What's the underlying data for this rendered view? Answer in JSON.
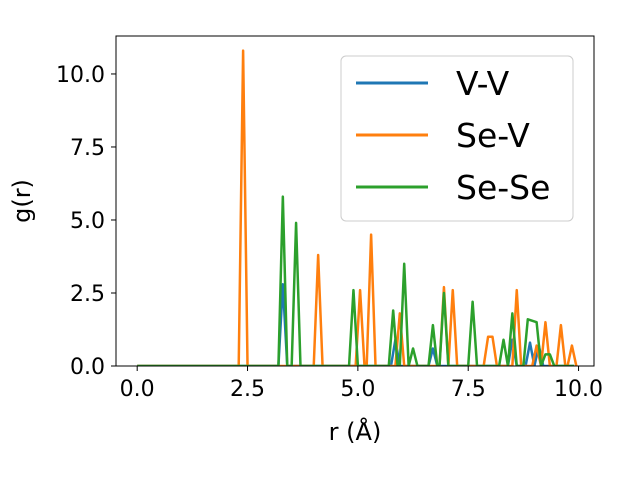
{
  "chart_data": {
    "type": "line",
    "title": "",
    "xlabel": "r (Å)",
    "ylabel": "g(r)",
    "xlim": [
      -0.48,
      10.35
    ],
    "ylim": [
      0.0,
      11.3
    ],
    "xticks": [
      0.0,
      2.5,
      5.0,
      7.5,
      10.0
    ],
    "xtick_labels": [
      "0.0",
      "2.5",
      "5.0",
      "7.5",
      "10.0"
    ],
    "yticks": [
      0.0,
      2.5,
      5.0,
      7.5,
      10.0
    ],
    "ytick_labels": [
      "0.0",
      "2.5",
      "5.0",
      "7.5",
      "10.0"
    ],
    "grid": false,
    "legend_position": "top-right",
    "series": [
      {
        "name": "V-V",
        "color": "#1f77b4",
        "x": [
          0.0,
          3.2,
          3.3,
          3.4,
          3.5,
          5.75,
          5.85,
          5.95,
          6.05,
          6.6,
          6.7,
          6.8,
          8.4,
          8.5,
          8.6,
          8.8,
          8.9,
          9.0,
          9.1,
          9.2,
          9.3,
          9.9
        ],
        "values": [
          0.0,
          0.0,
          2.8,
          0.0,
          0.0,
          0.0,
          0.9,
          0.0,
          0.0,
          0.0,
          0.6,
          0.0,
          0.0,
          0.9,
          0.0,
          0.0,
          0.8,
          0.0,
          0.7,
          0.0,
          0.0,
          0.0
        ]
      },
      {
        "name": "Se-V",
        "color": "#ff7f0e",
        "x": [
          0.0,
          2.3,
          2.4,
          2.5,
          4.0,
          4.1,
          4.2,
          4.95,
          5.05,
          5.15,
          5.2,
          5.3,
          5.4,
          5.85,
          5.95,
          6.05,
          6.15,
          6.85,
          6.95,
          7.05,
          7.15,
          7.25,
          7.85,
          7.95,
          8.05,
          8.15,
          8.5,
          8.6,
          8.7,
          8.95,
          9.05,
          9.15,
          9.25,
          9.35,
          9.5,
          9.6,
          9.7,
          9.75,
          9.85,
          9.95
        ],
        "values": [
          0.0,
          0.0,
          10.8,
          0.0,
          0.0,
          3.8,
          0.0,
          0.0,
          2.6,
          0.0,
          0.0,
          4.5,
          0.0,
          0.0,
          1.8,
          0.0,
          0.0,
          0.0,
          2.7,
          0.0,
          2.6,
          0.0,
          0.0,
          1.0,
          1.0,
          0.0,
          0.0,
          2.6,
          0.0,
          0.0,
          0.7,
          0.0,
          1.5,
          0.0,
          0.0,
          1.4,
          0.0,
          0.0,
          0.7,
          0.0
        ]
      },
      {
        "name": "Se-Se",
        "color": "#2ca02c",
        "x": [
          0.0,
          3.2,
          3.3,
          3.4,
          3.5,
          3.6,
          3.7,
          4.8,
          4.9,
          5.0,
          5.7,
          5.8,
          5.9,
          5.95,
          6.05,
          6.15,
          6.25,
          6.35,
          6.6,
          6.7,
          6.8,
          6.85,
          6.95,
          7.05,
          7.5,
          7.6,
          7.7,
          8.2,
          8.3,
          8.4,
          8.5,
          8.6,
          8.75,
          8.85,
          9.05,
          9.15,
          9.25,
          9.35,
          9.45,
          9.9
        ],
        "values": [
          0.0,
          0.0,
          5.8,
          0.0,
          0.0,
          4.9,
          0.0,
          0.0,
          2.6,
          0.0,
          0.0,
          1.9,
          0.0,
          0.0,
          3.5,
          0.0,
          0.6,
          0.0,
          0.0,
          1.4,
          0.0,
          0.0,
          2.5,
          0.0,
          0.0,
          2.2,
          0.0,
          0.0,
          0.9,
          0.0,
          1.8,
          0.0,
          0.0,
          1.6,
          1.5,
          0.0,
          0.4,
          0.4,
          0.0,
          0.0
        ]
      }
    ]
  }
}
